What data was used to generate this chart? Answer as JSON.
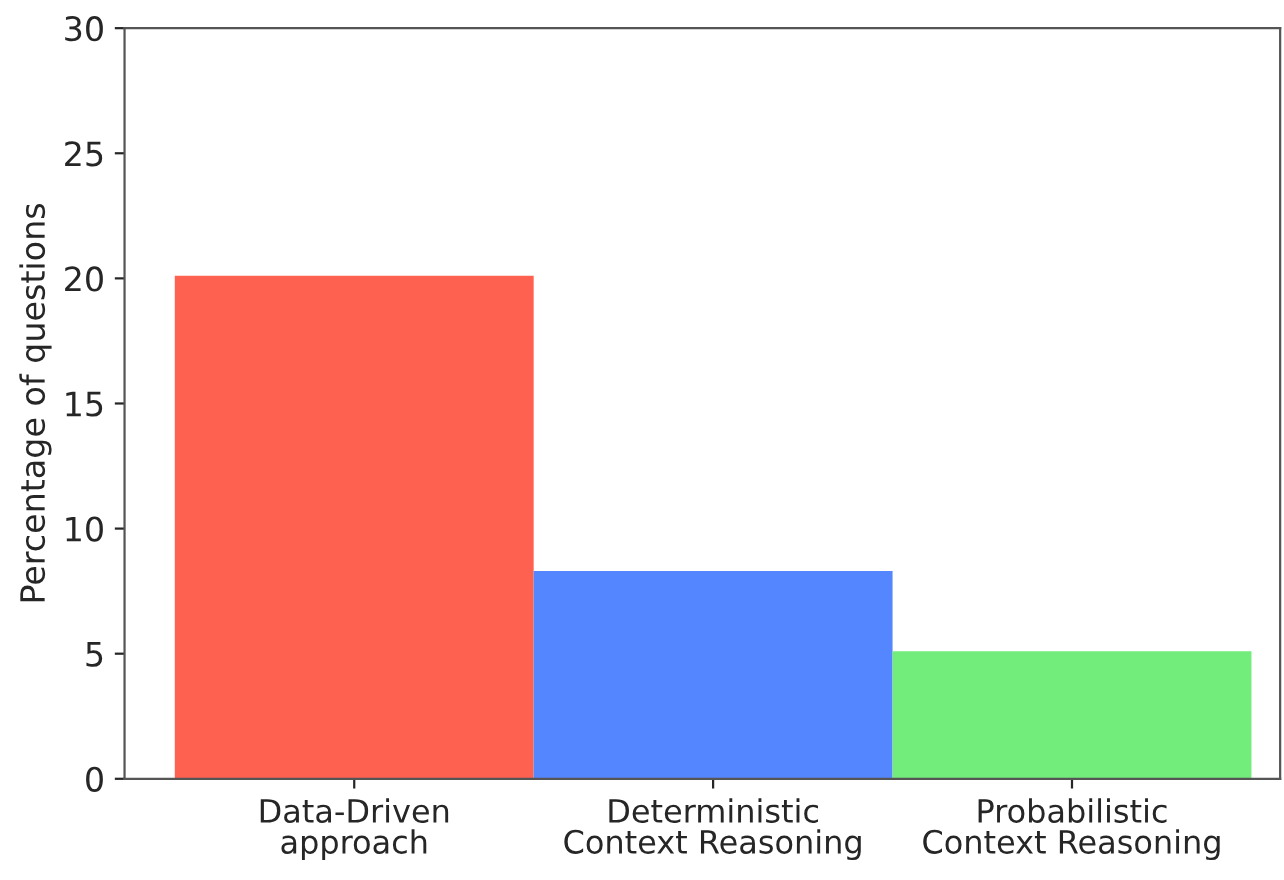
{
  "chart_data": {
    "type": "bar",
    "ylabel": "Percentage of questions",
    "categories": [
      "Data-Driven\napproach",
      "Deterministic\nContext Reasoning",
      "Probabilistic\nContext Reasoning"
    ],
    "values": [
      20.1,
      8.3,
      5.1
    ],
    "colors": [
      "#ff6150",
      "#5487ff",
      "#72ec7a"
    ],
    "ylim": [
      0,
      30
    ],
    "yticks": [
      0,
      5,
      10,
      15,
      20,
      25,
      30
    ],
    "grid": false,
    "legend": false
  }
}
